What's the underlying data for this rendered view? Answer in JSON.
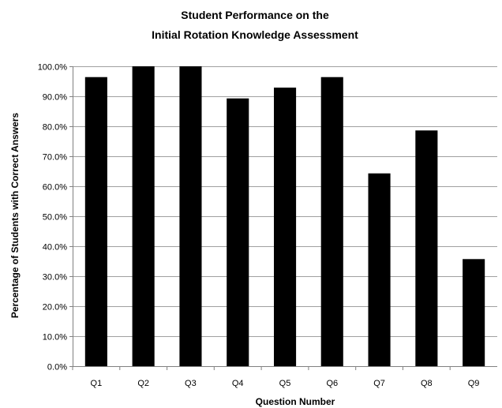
{
  "chart_data": {
    "type": "bar",
    "title": [
      "Student Performance on the",
      "Initial Rotation Knowledge Assessment"
    ],
    "xlabel": "Question Number",
    "ylabel": "Percentage of Students with Correct Answers",
    "categories": [
      "Q1",
      "Q2",
      "Q3",
      "Q4",
      "Q5",
      "Q6",
      "Q7",
      "Q8",
      "Q9"
    ],
    "values": [
      96.4,
      100.0,
      100.0,
      89.3,
      92.9,
      96.4,
      64.3,
      78.6,
      35.7
    ],
    "ylim": [
      0,
      100
    ],
    "yticks": [
      0,
      10,
      20,
      30,
      40,
      50,
      60,
      70,
      80,
      90,
      100
    ],
    "ytick_labels": [
      "0.0%",
      "10.0%",
      "20.0%",
      "30.0%",
      "40.0%",
      "50.0%",
      "60.0%",
      "70.0%",
      "80.0%",
      "90.0%",
      "100.0%"
    ],
    "grid": true,
    "bar_color": "#000000",
    "grid_color": "#a0a0a0",
    "legend": "none"
  }
}
